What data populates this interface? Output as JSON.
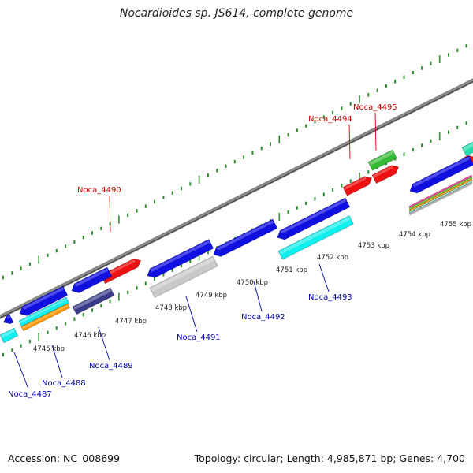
{
  "title": "Nocardioides sp. JS614, complete genome",
  "footer": {
    "accession": "Accession: NC_008699",
    "summary": "Topology: circular; Length: 4,985,871 bp; Genes: 4,700"
  },
  "colors": {
    "backbone": "#8c8c8c",
    "ticks": "#2e8b2e",
    "forward_label": "#cc0000",
    "reverse_label": "#0000aa",
    "blue": "#1010e0",
    "red": "#ee1111",
    "green": "#33bb33",
    "cyan": "#11eeee",
    "grey": "#c8c8c8",
    "navy": "#3a3a8a",
    "orange": "#ff9900",
    "teal": "#22ddaa"
  },
  "scale_labels": [
    "4745 kbp",
    "4746 kbp",
    "4747 kbp",
    "4748 kbp",
    "4749 kbp",
    "4750 kbp",
    "4751 kbp",
    "4752 kbp",
    "4753 kbp",
    "4754 kbp",
    "4755 kbp"
  ],
  "gene_labels": {
    "forward": [
      "Noca_4490",
      "Noca_4494",
      "Noca_4495"
    ],
    "reverse": [
      "Noca_4487",
      "Noca_4488",
      "Noca_4489",
      "Noca_4491",
      "Noca_4492",
      "Noca_4493"
    ]
  }
}
